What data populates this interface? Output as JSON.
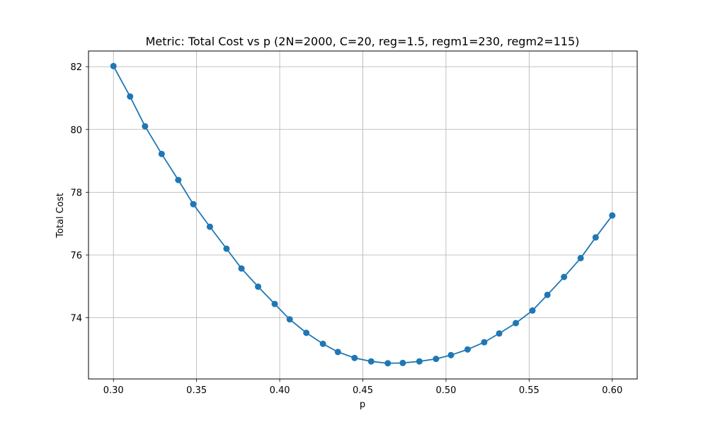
{
  "chart_data": {
    "type": "line",
    "title": "Metric: Total Cost vs p (2N=2000, C=20, reg=1.5, regm1=230, regm2=115)",
    "xlabel": "p",
    "ylabel": "Total Cost",
    "xlim": [
      0.285,
      0.615
    ],
    "ylim": [
      72.05,
      82.5
    ],
    "xticks": [
      0.3,
      0.35,
      0.4,
      0.45,
      0.5,
      0.55,
      0.6
    ],
    "xtick_labels": [
      "0.30",
      "0.35",
      "0.40",
      "0.45",
      "0.50",
      "0.55",
      "0.60"
    ],
    "yticks": [
      74,
      76,
      78,
      80,
      82
    ],
    "ytick_labels": [
      "74",
      "76",
      "78",
      "80",
      "82"
    ],
    "grid": true,
    "colors": {
      "series": "#1f77b4",
      "grid": "#b0b0b0",
      "axes": "#000000"
    },
    "series": [
      {
        "marker": "circle",
        "x": [
          0.3,
          0.31,
          0.319,
          0.329,
          0.339,
          0.348,
          0.358,
          0.368,
          0.377,
          0.387,
          0.397,
          0.406,
          0.416,
          0.426,
          0.435,
          0.445,
          0.455,
          0.465,
          0.474,
          0.484,
          0.494,
          0.503,
          0.513,
          0.523,
          0.532,
          0.542,
          0.552,
          0.561,
          0.571,
          0.581,
          0.59,
          0.6
        ],
        "y": [
          82.02,
          81.05,
          80.1,
          79.22,
          78.39,
          77.62,
          76.9,
          76.2,
          75.57,
          74.99,
          74.44,
          73.95,
          73.52,
          73.17,
          72.91,
          72.72,
          72.61,
          72.55,
          72.56,
          72.61,
          72.69,
          72.81,
          72.99,
          73.22,
          73.5,
          73.83,
          74.23,
          74.73,
          75.3,
          75.9,
          76.56,
          77.26
        ]
      }
    ]
  }
}
